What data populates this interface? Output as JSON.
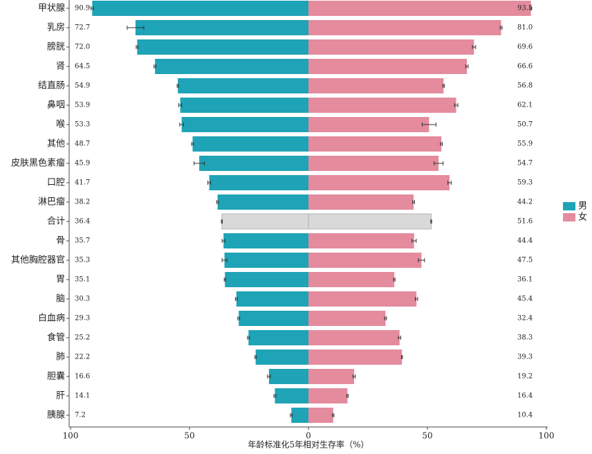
{
  "chart_data": {
    "type": "butterfly-bar",
    "x_label": "年龄标准化5年相对生存率（%）",
    "categories": [
      "甲状腺",
      "乳房",
      "膀胱",
      "肾",
      "结直肠",
      "鼻咽",
      "喉",
      "其他",
      "皮肤黑色素瘤",
      "口腔",
      "淋巴瘤",
      "合计",
      "骨",
      "其他胸腔器官",
      "胃",
      "脑",
      "白血病",
      "食管",
      "肺",
      "胆囊",
      "肝",
      "胰腺"
    ],
    "series": [
      {
        "name": "男",
        "color": "#1fa3b6",
        "values": [
          90.9,
          72.7,
          72.0,
          64.5,
          54.9,
          53.9,
          53.3,
          48.7,
          45.9,
          41.7,
          38.2,
          36.4,
          35.7,
          35.3,
          35.1,
          30.3,
          29.3,
          25.2,
          22.2,
          16.6,
          14.1,
          7.2
        ],
        "value_labels": [
          "90.9",
          "72.7",
          "72.0",
          "64.5",
          "54.9",
          "53.9",
          "53.3",
          "48.7",
          "45.9",
          "41.7",
          "38.2",
          "36.4",
          "35.7",
          "35.3",
          "35.1",
          "30.3",
          "29.3",
          "25.2",
          "22.2",
          "16.6",
          "14.1",
          "7.2"
        ],
        "errors": [
          0.5,
          3.5,
          0.4,
          0.4,
          0.3,
          0.6,
          0.8,
          0.4,
          2.2,
          0.6,
          0.4,
          0.2,
          0.6,
          1.0,
          0.3,
          0.4,
          0.4,
          0.4,
          0.3,
          0.6,
          0.4,
          0.4
        ]
      },
      {
        "name": "女",
        "color": "#e48b9e",
        "values": [
          93.5,
          81.0,
          69.6,
          66.6,
          56.8,
          62.1,
          50.7,
          55.9,
          54.7,
          59.3,
          44.2,
          51.6,
          44.4,
          47.5,
          36.1,
          45.4,
          32.4,
          38.3,
          39.3,
          19.2,
          16.4,
          10.4
        ],
        "value_labels": [
          "93.5",
          "81.0",
          "69.6",
          "66.6",
          "56.8",
          "62.1",
          "50.7",
          "55.9",
          "54.7",
          "59.3",
          "44.2",
          "51.6",
          "44.4",
          "47.5",
          "36.1",
          "45.4",
          "32.4",
          "38.3",
          "39.3",
          "19.2",
          "16.4",
          "10.4"
        ],
        "errors": [
          0.3,
          0.4,
          0.7,
          0.5,
          0.3,
          0.7,
          2.9,
          0.4,
          1.9,
          0.7,
          0.4,
          0.2,
          0.9,
          1.3,
          0.3,
          0.5,
          0.4,
          0.5,
          0.2,
          0.5,
          0.3,
          0.3
        ]
      }
    ],
    "highlight": {
      "index": 11,
      "color": "#d9d9d9"
    },
    "xlim": [
      -100,
      100
    ],
    "xticks": [
      {
        "value": -100,
        "label": "100"
      },
      {
        "value": -50,
        "label": "50"
      },
      0,
      50,
      {
        "value": 100,
        "label": "100"
      }
    ],
    "legend": "right"
  }
}
